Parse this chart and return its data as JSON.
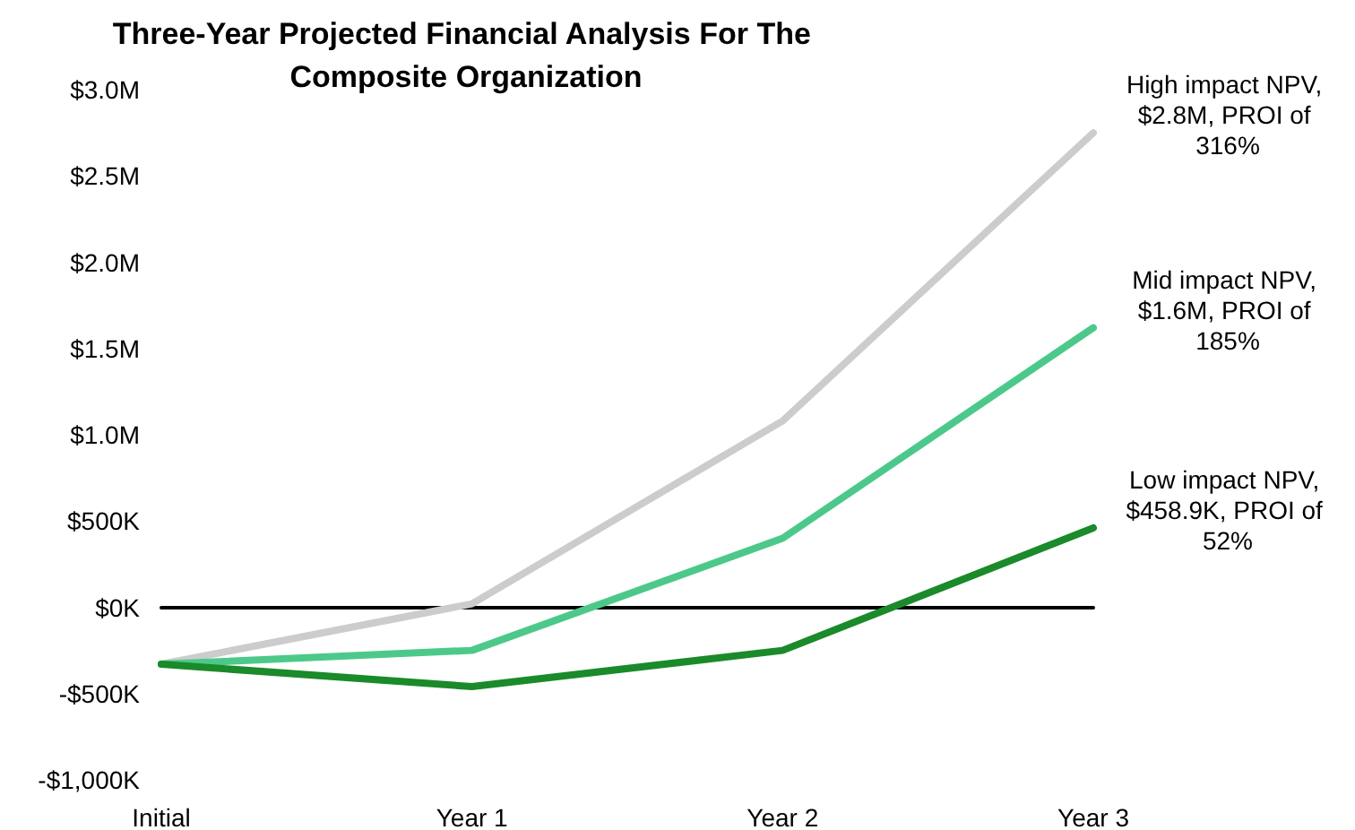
{
  "chart_data": {
    "type": "line",
    "title": "Three-Year Projected Financial Analysis For The Composite Organization",
    "categories": [
      "Initial",
      "Year 1",
      "Year 2",
      "Year 3"
    ],
    "series": [
      {
        "color": "#cccccc",
        "values": [
          -330000,
          20000,
          1080000,
          2750000
        ]
      },
      {
        "color": "#4cc98a",
        "values": [
          -330000,
          -250000,
          400000,
          1620000
        ]
      },
      {
        "color": "#1a8a2a",
        "values": [
          -330000,
          -460000,
          -250000,
          460000
        ]
      }
    ],
    "ylim": [
      -1000000,
      3000000
    ],
    "yticks": [
      {
        "value": -1000000,
        "label": "-$1,000K"
      },
      {
        "value": -500000,
        "label": "-$500K"
      },
      {
        "value": 0,
        "label": "$0K"
      },
      {
        "value": 500000,
        "label": "$500K"
      },
      {
        "value": 1000000,
        "label": "$1.0M"
      },
      {
        "value": 1500000,
        "label": "$1.5M"
      },
      {
        "value": 2000000,
        "label": "$2.0M"
      },
      {
        "value": 2500000,
        "label": "$2.5M"
      },
      {
        "value": 3000000,
        "label": "$3.0M"
      }
    ],
    "annotations": [
      {
        "text": "High impact NPV, $2.8M, PROI of 316%",
        "x": "Year 3",
        "y": 2750000
      },
      {
        "text": "Mid impact NPV, $1.6M, PROI of 185%",
        "x": "Year 3",
        "y": 1620000
      },
      {
        "text": "Low impact NPV, $458.9K, PROI of 52%",
        "x": "Year 3",
        "y": 460000
      }
    ],
    "marker": "none",
    "line_style": "solid"
  }
}
